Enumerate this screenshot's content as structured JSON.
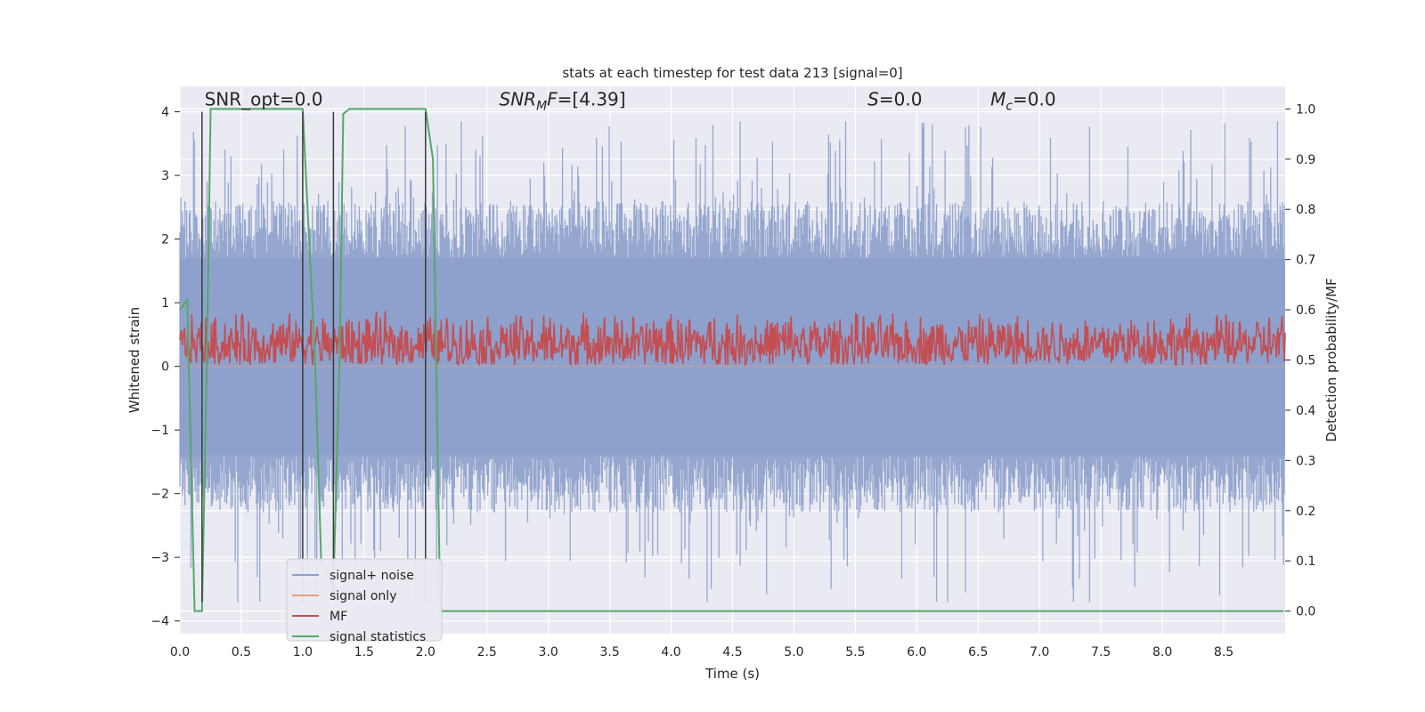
{
  "chart_data": {
    "type": "line",
    "title": "stats at each timestep for test data 213 [signal=0]",
    "xlabel": "Time (s)",
    "ylabel_left": "Whitened strain",
    "ylabel_right": "Detection probability/MF",
    "xlim": [
      0.0,
      9.0
    ],
    "ylim_left": [
      -4.2,
      4.4
    ],
    "ylim_right": [
      -0.045,
      1.045
    ],
    "x_ticks": [
      0.0,
      0.5,
      1.0,
      1.5,
      2.0,
      2.5,
      3.0,
      3.5,
      4.0,
      4.5,
      5.0,
      5.5,
      6.0,
      6.5,
      7.0,
      7.5,
      8.0,
      8.5
    ],
    "x_tick_labels": [
      "0.0",
      "0.5",
      "1.0",
      "1.5",
      "2.0",
      "2.5",
      "3.0",
      "3.5",
      "4.0",
      "4.5",
      "5.0",
      "5.5",
      "6.0",
      "6.5",
      "7.0",
      "7.5",
      "8.0",
      "8.5"
    ],
    "y_ticks_left": [
      -4,
      -3,
      -2,
      -1,
      0,
      1,
      2,
      3,
      4
    ],
    "y_tick_labels_left": [
      "−4",
      "−3",
      "−2",
      "−1",
      "0",
      "1",
      "2",
      "3",
      "4"
    ],
    "y_ticks_right": [
      0.0,
      0.1,
      0.2,
      0.3,
      0.4,
      0.5,
      0.6,
      0.7,
      0.8,
      0.9,
      1.0
    ],
    "y_tick_labels_right": [
      "0.0",
      "0.1",
      "0.2",
      "0.3",
      "0.4",
      "0.5",
      "0.6",
      "0.7",
      "0.8",
      "0.9",
      "1.0"
    ],
    "grid": true,
    "legend_placement": "lower-left",
    "annotations": [
      {
        "text": "SNR_opt=0.0",
        "x": 0.2,
        "y": 4.1
      },
      {
        "text": "SNR_MF=[4.39]",
        "x": 2.6,
        "y": 4.1
      },
      {
        "text": "S=0.0",
        "x": 5.6,
        "y": 4.1
      },
      {
        "text": "Mc=0.0",
        "x": 6.6,
        "y": 4.1
      }
    ],
    "vertical_markers_x": [
      0.18,
      1.0,
      1.25,
      2.0
    ],
    "vertical_markers_range": [
      -3.7,
      4.0
    ],
    "series": [
      {
        "name": "signal+ noise",
        "color": "#8da0cb",
        "axis": "left",
        "kind": "noise",
        "amplitude_range": [
          -3.7,
          3.85
        ],
        "core_band": [
          -1.4,
          1.7
        ]
      },
      {
        "name": "signal only",
        "color": "#e8a07a",
        "axis": "left",
        "kind": "flat",
        "value": 0.0
      },
      {
        "name": "MF",
        "color": "#c44e52",
        "axis": "right",
        "kind": "noise",
        "range": [
          0.49,
          0.6
        ]
      },
      {
        "name": "signal statistics",
        "color": "#55a868",
        "axis": "right",
        "kind": "line",
        "x": [
          0.0,
          0.06,
          0.12,
          0.18,
          0.22,
          0.25,
          0.28,
          0.5,
          1.0,
          1.02,
          1.1,
          1.15,
          1.25,
          1.3,
          1.33,
          1.38,
          1.5,
          1.98,
          2.0,
          2.06,
          2.12,
          2.2,
          8.99
        ],
        "y": [
          0.6,
          0.62,
          0.0,
          0.0,
          0.5,
          1.0,
          1.0,
          1.0,
          1.0,
          0.9,
          0.5,
          0.1,
          0.05,
          0.5,
          0.99,
          1.0,
          1.0,
          1.0,
          1.0,
          0.9,
          0.0,
          0.0,
          0.0
        ]
      }
    ]
  },
  "colors": {
    "plot_background": "#eaeaf2",
    "grid": "#ffffff",
    "marker_line": "#3a3a3a",
    "text": "#262626"
  }
}
